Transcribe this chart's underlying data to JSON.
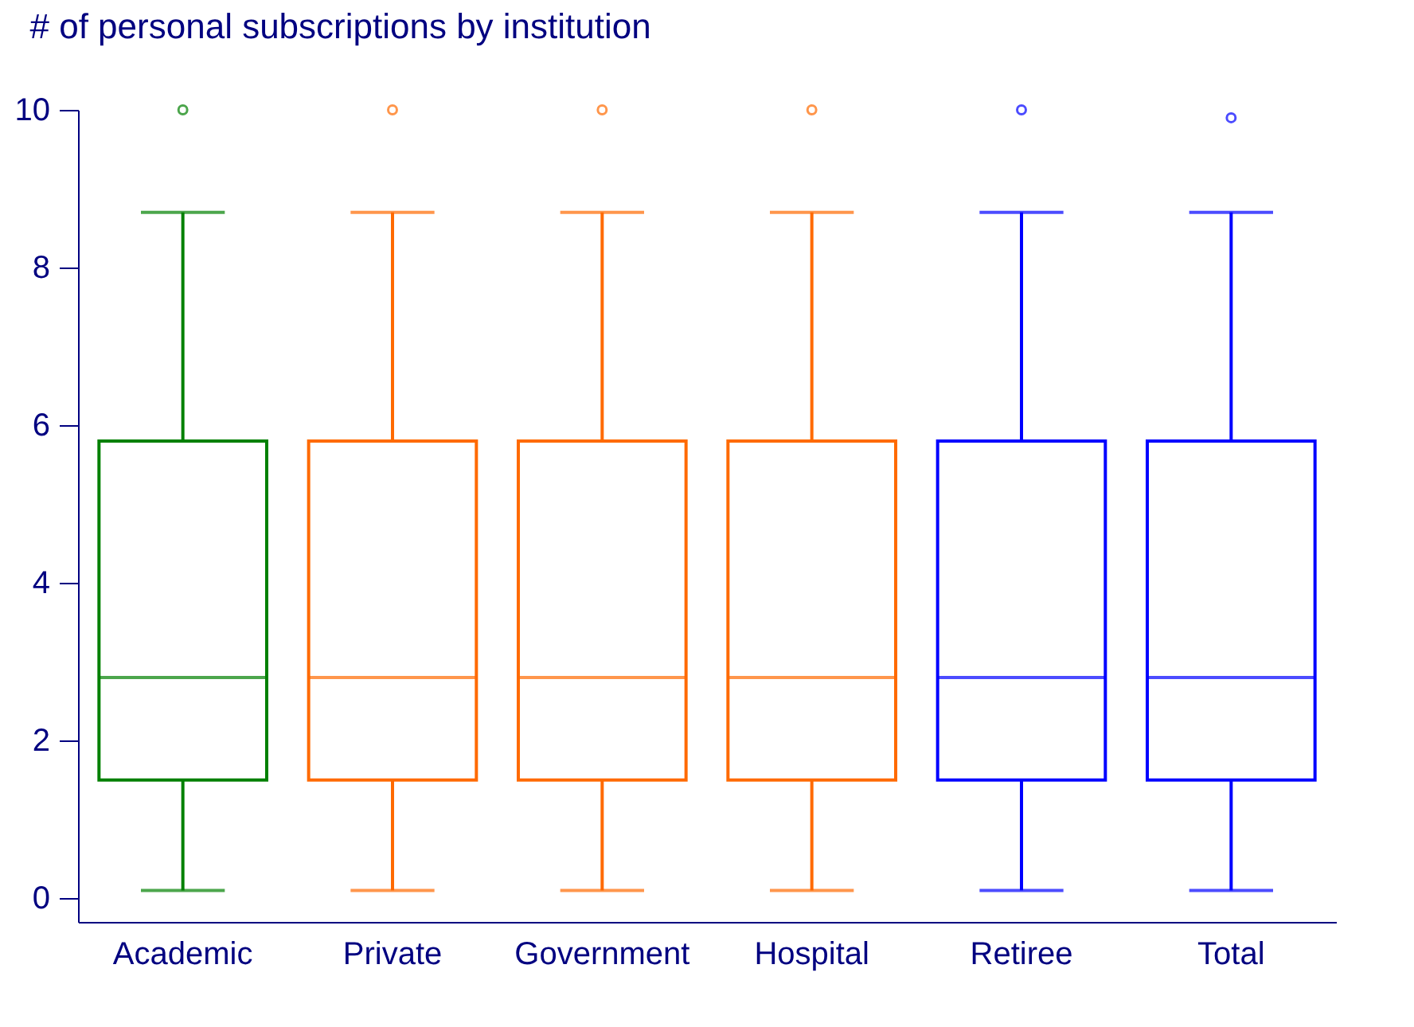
{
  "chart_data": {
    "type": "box",
    "title": "# of personal subscriptions by institution",
    "categories": [
      "Academic",
      "Private",
      "Government",
      "Hospital",
      "Retiree",
      "Total"
    ],
    "colors": [
      "#008000",
      "#ff6a00",
      "#ff6a00",
      "#ff6a00",
      "#0000ff",
      "#0000ff"
    ],
    "boxes": [
      {
        "low": 0.1,
        "q1": 1.5,
        "median": 2.8,
        "q3": 5.8,
        "high": 8.7,
        "outliers": [
          10
        ]
      },
      {
        "low": 0.1,
        "q1": 1.5,
        "median": 2.8,
        "q3": 5.8,
        "high": 8.7,
        "outliers": [
          10
        ]
      },
      {
        "low": 0.1,
        "q1": 1.5,
        "median": 2.8,
        "q3": 5.8,
        "high": 8.7,
        "outliers": [
          10
        ]
      },
      {
        "low": 0.1,
        "q1": 1.5,
        "median": 2.8,
        "q3": 5.8,
        "high": 8.7,
        "outliers": [
          10
        ]
      },
      {
        "low": 0.1,
        "q1": 1.5,
        "median": 2.8,
        "q3": 5.8,
        "high": 8.7,
        "outliers": [
          10
        ]
      },
      {
        "low": 0.1,
        "q1": 1.5,
        "median": 2.8,
        "q3": 5.8,
        "high": 8.7,
        "outliers": [
          9.9
        ]
      }
    ],
    "ylim": [
      -0.3,
      10
    ],
    "yticks": [
      0,
      2,
      4,
      6,
      8,
      10
    ],
    "grid": false,
    "legend": false,
    "marker": "circle"
  }
}
